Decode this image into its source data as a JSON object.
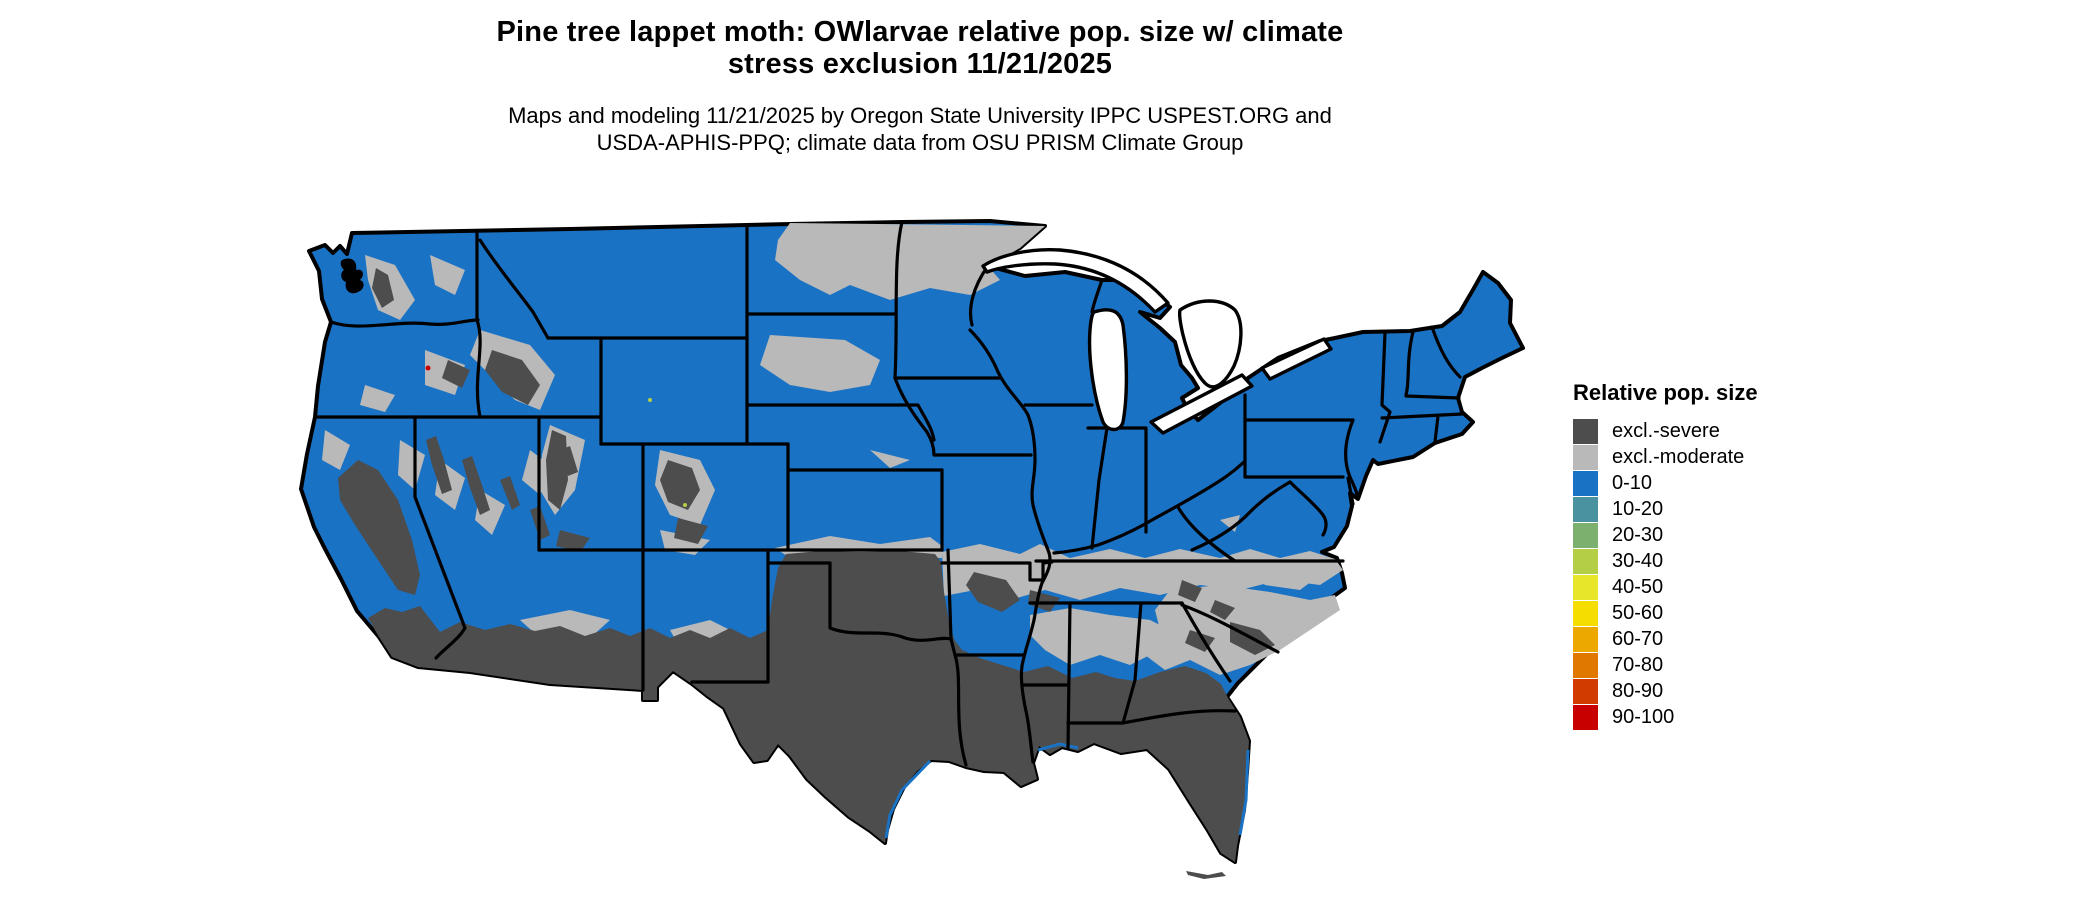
{
  "title": {
    "line1": "Pine tree lappet moth: OWlarvae relative pop. size w/ climate",
    "line2": "stress exclusion 11/21/2025"
  },
  "subtitle": {
    "line1": "Maps and modeling 11/21/2025 by Oregon State University IPPC USPEST.ORG and",
    "line2": "USDA-APHIS-PPQ; climate data from OSU PRISM Climate Group"
  },
  "legend": {
    "title": "Relative pop. size",
    "items": [
      {
        "label": "excl.-severe",
        "color": "#4d4d4d"
      },
      {
        "label": "excl.-moderate",
        "color": "#b9b9b9"
      },
      {
        "label": "0-10",
        "color": "#1a72c4"
      },
      {
        "label": "10-20",
        "color": "#4a92a0"
      },
      {
        "label": "20-30",
        "color": "#7bb06e"
      },
      {
        "label": "30-40",
        "color": "#b4cf45"
      },
      {
        "label": "40-50",
        "color": "#e8e62b"
      },
      {
        "label": "50-60",
        "color": "#f6dd00"
      },
      {
        "label": "60-70",
        "color": "#eda800"
      },
      {
        "label": "70-80",
        "color": "#e07800"
      },
      {
        "label": "80-90",
        "color": "#d23b00"
      },
      {
        "label": "90-100",
        "color": "#c90000"
      }
    ]
  },
  "colors": {
    "land_base": "#1a72c4",
    "excl_severe": "#4d4d4d",
    "excl_moderate": "#b9b9b9",
    "border": "#000000",
    "water": "#ffffff",
    "speck_red": "#c90000",
    "speck_yellow_green": "#b4cf45"
  }
}
